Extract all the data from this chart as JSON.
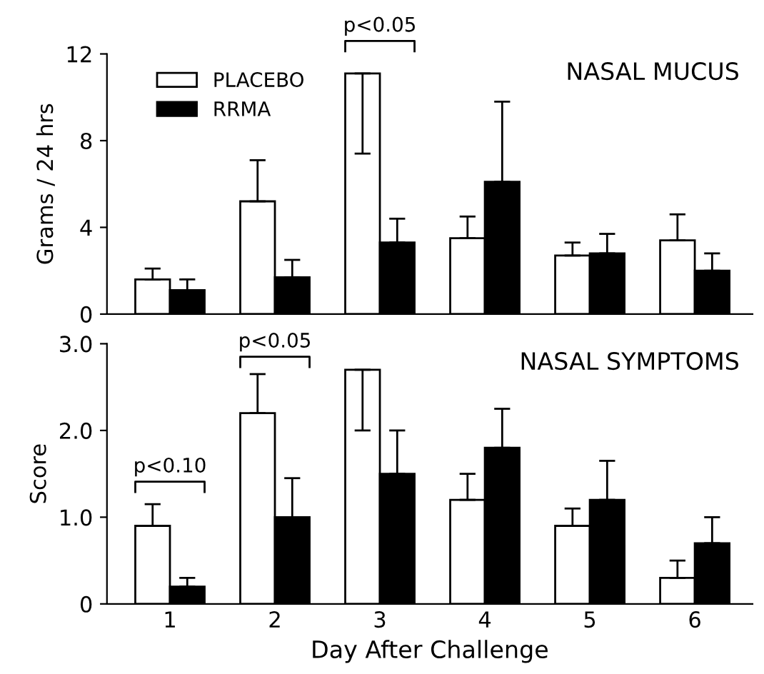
{
  "chart_data": [
    {
      "type": "bar",
      "title": "NASAL MUCUS",
      "ylabel": "Grams / 24 hrs",
      "categories": [
        "1",
        "2",
        "3",
        "4",
        "5",
        "6"
      ],
      "series": [
        {
          "name": "PLACEBO",
          "color": "#ffffff",
          "values": [
            1.6,
            5.2,
            11.1,
            3.5,
            2.7,
            3.4
          ],
          "errors": [
            [
              1.6,
              2.1
            ],
            [
              5.2,
              7.1
            ],
            [
              7.4,
              11.1
            ],
            [
              3.5,
              4.5
            ],
            [
              2.7,
              3.3
            ],
            [
              3.4,
              4.6
            ]
          ]
        },
        {
          "name": "RRMA",
          "color": "#000000",
          "values": [
            1.1,
            1.7,
            3.3,
            6.1,
            2.8,
            2.0
          ],
          "errors": [
            [
              1.1,
              1.6
            ],
            [
              1.7,
              2.5
            ],
            [
              3.3,
              4.4
            ],
            [
              6.1,
              9.8
            ],
            [
              2.8,
              3.7
            ],
            [
              2.0,
              2.8
            ]
          ]
        }
      ],
      "ylim": [
        0,
        12
      ],
      "yticks": [
        0,
        4,
        8,
        12
      ],
      "tick_labels": "y",
      "legend": "top left",
      "grid": false,
      "annotations": [
        "p<0.05"
      ]
    },
    {
      "type": "bar",
      "title": "NASAL SYMPTOMS",
      "xlabel": "Day After Challenge",
      "ylabel": "Score",
      "categories": [
        "1",
        "2",
        "3",
        "4",
        "5",
        "6"
      ],
      "series": [
        {
          "color": "#ffffff",
          "values": [
            0.9,
            2.2,
            2.7,
            1.2,
            0.9,
            0.3
          ],
          "errors": [
            [
              0.9,
              1.15
            ],
            [
              2.2,
              2.65
            ],
            [
              2.0,
              2.7
            ],
            [
              1.2,
              1.5
            ],
            [
              0.9,
              1.1
            ],
            [
              0.3,
              0.5
            ]
          ]
        },
        {
          "color": "#000000",
          "values": [
            0.2,
            1.0,
            1.5,
            1.8,
            1.2,
            0.7
          ],
          "errors": [
            [
              0.2,
              0.3
            ],
            [
              1.0,
              1.45
            ],
            [
              1.5,
              2.0
            ],
            [
              1.8,
              2.25
            ],
            [
              1.2,
              1.65
            ],
            [
              0.7,
              1.0
            ]
          ]
        }
      ],
      "ylim": [
        0,
        3
      ],
      "yticks": [
        0,
        {
          "value": 1,
          "label": "1.0"
        },
        {
          "value": 2,
          "label": "2.0"
        },
        {
          "value": 3,
          "label": "3.0"
        }
      ],
      "grid": false,
      "annotations": [
        "p<0.10",
        "p<0.05"
      ]
    }
  ]
}
